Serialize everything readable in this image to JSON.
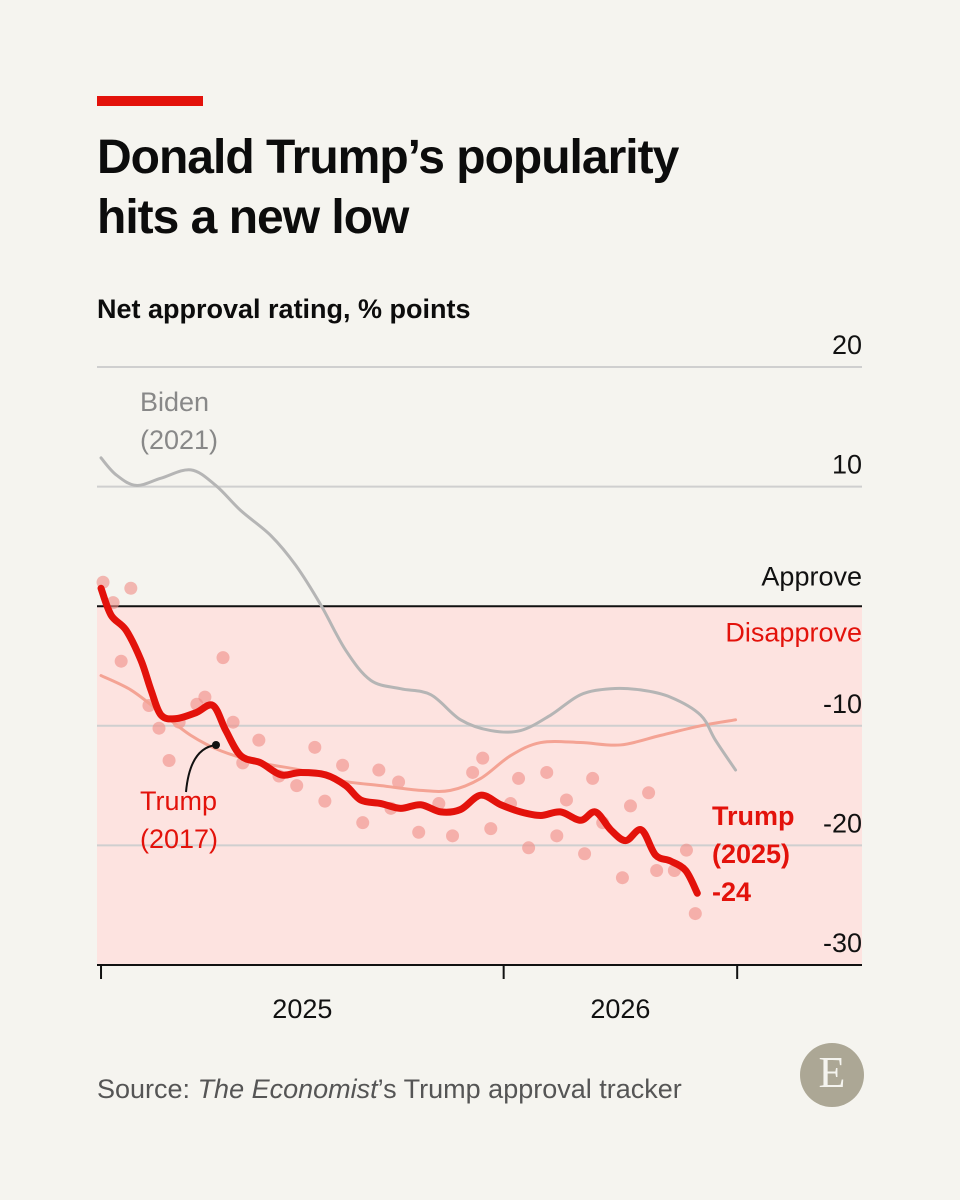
{
  "chart_data": {
    "type": "line",
    "title": "Donald Trump’s popularity hits a new low",
    "subtitle": "Net approval rating, % points",
    "ylim": [
      -30,
      20
    ],
    "yticks": [
      -30,
      -20,
      -10,
      10,
      20
    ],
    "xlim": [
      2024.99,
      2026.89
    ],
    "xticks": [
      2025,
      2026,
      2026.58
    ],
    "xtick_labels": [
      "2025",
      "2026"
    ],
    "zero_labels": {
      "above": "Approve",
      "below": "Disapprove"
    },
    "grid": true,
    "series": [
      {
        "name": "Trump (2025)",
        "color": "#e3120b",
        "x": [
          2025,
          2025.025,
          2025.062,
          2025.099,
          2025.124,
          2025.149,
          2025.186,
          2025.236,
          2025.278,
          2025.31,
          2025.347,
          2025.397,
          2025.447,
          2025.496,
          2025.558,
          2025.608,
          2025.645,
          2025.695,
          2025.744,
          2025.794,
          2025.844,
          2025.893,
          2025.943,
          2025.993,
          2026.042,
          2026.092,
          2026.141,
          2026.191,
          2026.228,
          2026.266,
          2026.303,
          2026.342,
          2026.377,
          2026.414,
          2026.452,
          2026.481
        ],
        "values": [
          1.5,
          -0.75,
          -2,
          -4.5,
          -7,
          -9.1,
          -9.4,
          -8.9,
          -8.3,
          -10.4,
          -12.5,
          -13.1,
          -14.1,
          -13.9,
          -14.1,
          -15,
          -16.2,
          -16.5,
          -16.9,
          -16.6,
          -17.2,
          -17,
          -15.8,
          -16.6,
          -17.2,
          -17.5,
          -17.2,
          -17.9,
          -17.2,
          -18.7,
          -19.6,
          -18.7,
          -20.8,
          -21.3,
          -22.1,
          -24
        ]
      },
      {
        "name": "Biden (2021)",
        "color": "#b5b5b5",
        "x": [
          2025,
          2025.037,
          2025.087,
          2025.149,
          2025.223,
          2025.285,
          2025.347,
          2025.422,
          2025.484,
          2025.546,
          2025.608,
          2025.67,
          2025.744,
          2025.819,
          2025.893,
          2025.968,
          2026.042,
          2026.117,
          2026.191,
          2026.266,
          2026.34,
          2026.414,
          2026.489,
          2026.526,
          2026.576
        ],
        "values": [
          12.4,
          11,
          10.1,
          10.7,
          11.4,
          10.1,
          8,
          5.9,
          3.4,
          0.1,
          -3.7,
          -6.2,
          -6.9,
          -7.4,
          -9.5,
          -10.4,
          -10.4,
          -9.1,
          -7.4,
          -6.9,
          -7,
          -7.6,
          -9.1,
          -11.2,
          -13.7
        ]
      },
      {
        "name": "Trump (2017)",
        "color": "#f4a394",
        "x": [
          2025,
          2025.074,
          2025.149,
          2025.223,
          2025.298,
          2025.397,
          2025.496,
          2025.596,
          2025.695,
          2025.794,
          2025.868,
          2025.943,
          2026.017,
          2026.092,
          2026.191,
          2026.29,
          2026.39,
          2026.489,
          2026.576
        ],
        "values": [
          -5.8,
          -7,
          -8.9,
          -10.8,
          -12.1,
          -13.1,
          -13.7,
          -14.6,
          -15,
          -15.4,
          -15.4,
          -14.4,
          -12.5,
          -11.4,
          -11.4,
          -11.6,
          -10.8,
          -10,
          -9.5
        ]
      }
    ],
    "scatter": {
      "color": "#f08c86",
      "x": [
        2025.005,
        2025.03,
        2025.074,
        2025.05,
        2025.119,
        2025.144,
        2025.169,
        2025.194,
        2025.238,
        2025.258,
        2025.303,
        2025.328,
        2025.352,
        2025.392,
        2025.442,
        2025.486,
        2025.531,
        2025.556,
        2025.6,
        2025.65,
        2025.69,
        2025.72,
        2025.739,
        2025.789,
        2025.839,
        2025.873,
        2025.923,
        2025.948,
        2025.968,
        2026.017,
        2026.037,
        2026.062,
        2026.107,
        2026.132,
        2026.156,
        2026.201,
        2026.221,
        2026.246,
        2026.295,
        2026.315,
        2026.36,
        2026.38,
        2026.424,
        2026.454,
        2026.476
      ],
      "values": [
        2,
        0.3,
        1.5,
        -4.6,
        -8.3,
        -10.2,
        -12.9,
        -9.7,
        -8.2,
        -7.6,
        -4.3,
        -9.7,
        -13.1,
        -11.2,
        -14.2,
        -15,
        -11.8,
        -16.3,
        -13.3,
        -18.1,
        -13.7,
        -16.9,
        -14.7,
        -18.9,
        -16.5,
        -19.2,
        -13.9,
        -12.7,
        -18.6,
        -16.5,
        -14.4,
        -20.2,
        -13.9,
        -19.2,
        -16.2,
        -20.7,
        -14.4,
        -18.1,
        -22.7,
        -16.7,
        -15.6,
        -22.1,
        -22.1,
        -20.4,
        -25.7
      ]
    },
    "source": {
      "prefix": "Source: ",
      "italic": "The Economist",
      "suffix": "’s Trump approval tracker"
    },
    "logo": "E"
  }
}
